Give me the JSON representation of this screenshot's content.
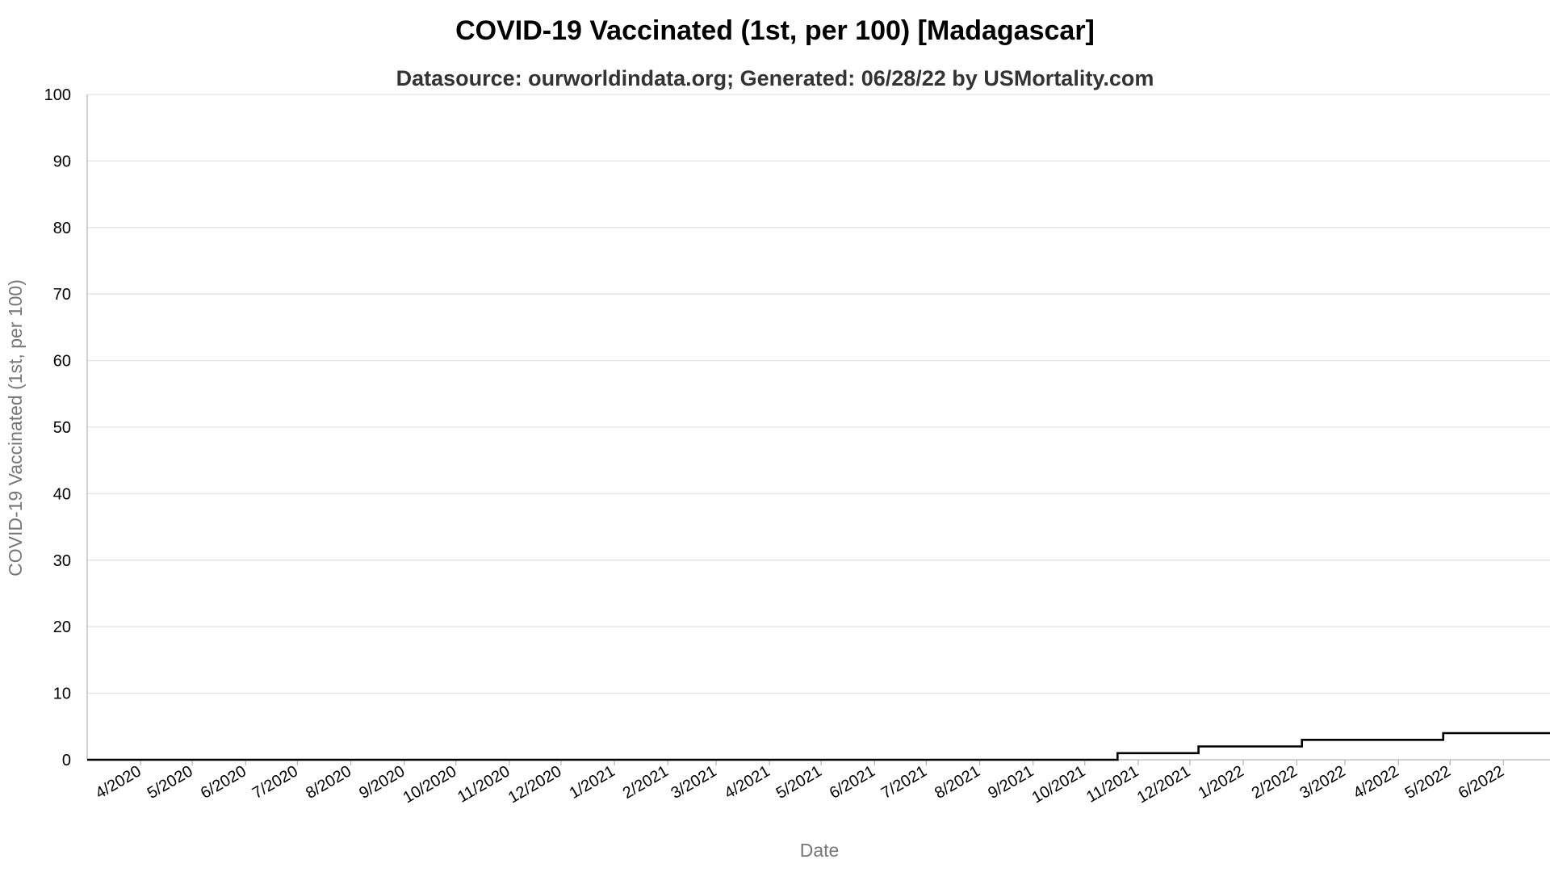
{
  "chart_data": {
    "type": "line",
    "title": "COVID-19 Vaccinated (1st, per 100) [Madagascar]",
    "subtitle": "Datasource: ourworldindata.org; Generated: 06/28/22 by USMortality.com",
    "xlabel": "Date",
    "ylabel": "COVID-19 Vaccinated (1st, per 100)",
    "xlim": [
      "2020-03-01",
      "2022-06-28"
    ],
    "ylim": [
      0,
      100
    ],
    "yticks": [
      0,
      10,
      20,
      30,
      40,
      50,
      60,
      70,
      80,
      90,
      100
    ],
    "xticks": [
      {
        "date": "2020-04-01",
        "label": "4/2020"
      },
      {
        "date": "2020-05-01",
        "label": "5/2020"
      },
      {
        "date": "2020-06-01",
        "label": "6/2020"
      },
      {
        "date": "2020-07-01",
        "label": "7/2020"
      },
      {
        "date": "2020-08-01",
        "label": "8/2020"
      },
      {
        "date": "2020-09-01",
        "label": "9/2020"
      },
      {
        "date": "2020-10-01",
        "label": "10/2020"
      },
      {
        "date": "2020-11-01",
        "label": "11/2020"
      },
      {
        "date": "2020-12-01",
        "label": "12/2020"
      },
      {
        "date": "2021-01-01",
        "label": "1/2021"
      },
      {
        "date": "2021-02-01",
        "label": "2/2021"
      },
      {
        "date": "2021-03-01",
        "label": "3/2021"
      },
      {
        "date": "2021-04-01",
        "label": "4/2021"
      },
      {
        "date": "2021-05-01",
        "label": "5/2021"
      },
      {
        "date": "2021-06-01",
        "label": "6/2021"
      },
      {
        "date": "2021-07-01",
        "label": "7/2021"
      },
      {
        "date": "2021-08-01",
        "label": "8/2021"
      },
      {
        "date": "2021-09-01",
        "label": "9/2021"
      },
      {
        "date": "2021-10-01",
        "label": "10/2021"
      },
      {
        "date": "2021-11-01",
        "label": "11/2021"
      },
      {
        "date": "2021-12-01",
        "label": "12/2021"
      },
      {
        "date": "2022-01-01",
        "label": "1/2022"
      },
      {
        "date": "2022-02-01",
        "label": "2/2022"
      },
      {
        "date": "2022-03-01",
        "label": "3/2022"
      },
      {
        "date": "2022-04-01",
        "label": "4/2022"
      },
      {
        "date": "2022-05-01",
        "label": "5/2022"
      },
      {
        "date": "2022-06-01",
        "label": "6/2022"
      }
    ],
    "grid": true,
    "legend": "none",
    "line_color": "#000000",
    "series": [
      {
        "step": true,
        "points": [
          {
            "x": "2020-03-01",
            "y": 0
          },
          {
            "x": "2021-10-20",
            "y": 0
          },
          {
            "x": "2021-10-20",
            "y": 1
          },
          {
            "x": "2021-12-06",
            "y": 1
          },
          {
            "x": "2021-12-06",
            "y": 2
          },
          {
            "x": "2022-02-04",
            "y": 2
          },
          {
            "x": "2022-02-04",
            "y": 3
          },
          {
            "x": "2022-04-27",
            "y": 3
          },
          {
            "x": "2022-04-27",
            "y": 4
          },
          {
            "x": "2022-06-28",
            "y": 4
          }
        ]
      }
    ]
  }
}
